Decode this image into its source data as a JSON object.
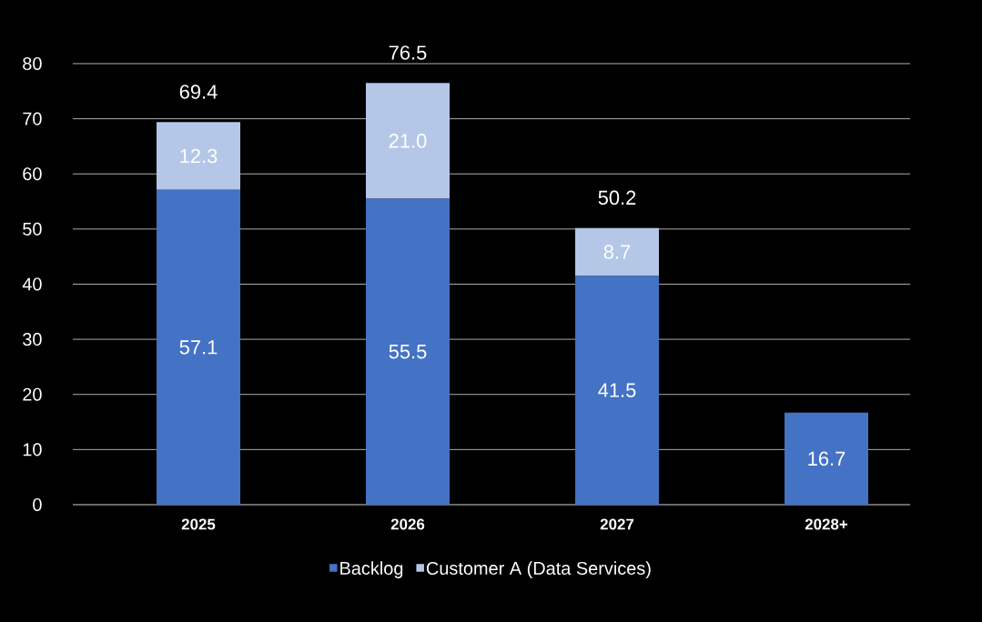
{
  "chart_data": {
    "type": "bar",
    "stacked": true,
    "categories": [
      "2025",
      "2026",
      "2027",
      "2028+"
    ],
    "series": [
      {
        "name": "Backlog",
        "color": "#4472c4",
        "values": [
          57.1,
          55.5,
          41.5,
          16.7
        ],
        "value_labels": [
          "57.1",
          "55.5",
          "41.5",
          "16.7"
        ]
      },
      {
        "name": "Customer A (Data Services)",
        "color": "#b4c7e7",
        "values": [
          12.3,
          21.0,
          8.7,
          null
        ],
        "value_labels": [
          "12.3",
          "21.0",
          "8.7",
          null
        ]
      }
    ],
    "totals": [
      "69.4",
      "76.5",
      "50.2",
      null
    ],
    "ylim": [
      0,
      80
    ],
    "yticks": [
      0,
      10,
      20,
      30,
      40,
      50,
      60,
      70,
      80
    ],
    "grid": "y",
    "legend": "bottom"
  }
}
